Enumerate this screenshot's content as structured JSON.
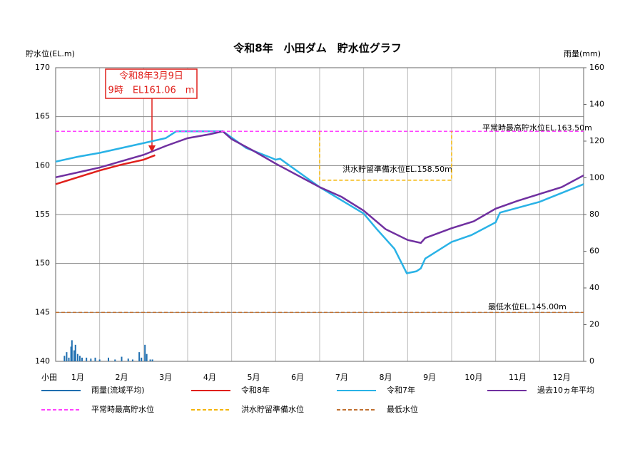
{
  "chart_data": {
    "type": "line",
    "title": "令和8年　小田ダム　貯水位グラフ",
    "y_label": "貯水位(EL.m)",
    "y2_label": "雨量(mm)",
    "x_label": "小田",
    "categories": [
      "1月",
      "2月",
      "3月",
      "4月",
      "5月",
      "6月",
      "7月",
      "8月",
      "9月",
      "10月",
      "11月",
      "12月"
    ],
    "xlim": [
      0,
      12
    ],
    "ylim": [
      140,
      170
    ],
    "yticks": [
      140,
      145,
      150,
      155,
      160,
      165,
      170
    ],
    "y2lim": [
      0,
      160
    ],
    "y2ticks": [
      0,
      20,
      40,
      60,
      80,
      100,
      120,
      140,
      160
    ],
    "grid": true,
    "series": [
      {
        "name": "雨量(流域平均)",
        "type": "bar",
        "axis": "y2",
        "color": "#1f6fb0",
        "x": [
          0.2,
          0.25,
          0.3,
          0.35,
          0.37,
          0.42,
          0.45,
          0.5,
          0.55,
          0.6,
          0.7,
          0.8,
          0.9,
          1.0,
          1.2,
          1.35,
          1.5,
          1.65,
          1.75,
          1.9,
          1.95,
          2.03,
          2.07,
          2.15,
          2.2
        ],
        "values": [
          3,
          5,
          2,
          8,
          11.5,
          6,
          9,
          4,
          3,
          2,
          2,
          1.5,
          2,
          1,
          2,
          1,
          2.5,
          1.5,
          1,
          5,
          2,
          9,
          4,
          1,
          1
        ]
      },
      {
        "name": "令和8年",
        "color": "#e0201b",
        "x": [
          0,
          0.5,
          1,
          1.5,
          2,
          2.26
        ],
        "values": [
          158.1,
          158.8,
          159.5,
          160.1,
          160.6,
          161.06
        ]
      },
      {
        "name": "令和7年",
        "color": "#29b2e6",
        "x": [
          0,
          0.5,
          1,
          1.5,
          2,
          2.5,
          2.74,
          3.8,
          4.33,
          4.9,
          5.0,
          5.1,
          6.0,
          7.0,
          7.3,
          7.7,
          7.98,
          8.2,
          8.3,
          8.4,
          9.0,
          9.45,
          10.0,
          10.1,
          11.0,
          12.0
        ],
        "values": [
          160.4,
          160.9,
          161.3,
          161.8,
          162.3,
          162.8,
          163.5,
          163.5,
          161.8,
          160.8,
          160.6,
          160.7,
          157.8,
          155.1,
          153.5,
          151.5,
          149.0,
          149.2,
          149.5,
          150.5,
          152.2,
          152.9,
          154.2,
          155.2,
          156.3,
          158.1
        ]
      },
      {
        "name": "過去10ヵ年平均",
        "color": "#7030a0",
        "x": [
          0,
          1,
          2,
          2.5,
          3,
          3.5,
          3.8,
          4,
          4.5,
          5,
          6,
          6.5,
          7,
          7.5,
          8,
          8.3,
          8.4,
          9,
          9.5,
          10,
          10.5,
          11,
          11.5,
          12
        ],
        "values": [
          158.8,
          159.8,
          161.1,
          162.0,
          162.8,
          163.2,
          163.5,
          162.7,
          161.5,
          160.2,
          157.8,
          156.8,
          155.4,
          153.5,
          152.4,
          152.1,
          152.6,
          153.6,
          154.3,
          155.6,
          156.4,
          157.1,
          157.8,
          159.0
        ]
      },
      {
        "name": "平常時最高貯水位",
        "color": "#ff40ff",
        "dashed": true,
        "x": [
          0,
          12
        ],
        "values": [
          163.5,
          163.5
        ]
      },
      {
        "name": "洪水貯留準備水位",
        "color": "#f4b400",
        "dashed": true,
        "x": [
          6,
          6,
          9,
          9
        ],
        "values": [
          163.5,
          158.5,
          158.5,
          163.5
        ]
      },
      {
        "name": "最低水位",
        "color": "#c07030",
        "dashed": true,
        "x": [
          0,
          12
        ],
        "values": [
          145,
          145
        ]
      }
    ],
    "annotations": [
      "平常時最高貯水位EL.163.50m",
      "洪水貯留準備水位EL.158.50m",
      "最低水位EL.145.00m"
    ],
    "callout": [
      "令和8年3月9日",
      "9時　EL161.06　m"
    ]
  }
}
